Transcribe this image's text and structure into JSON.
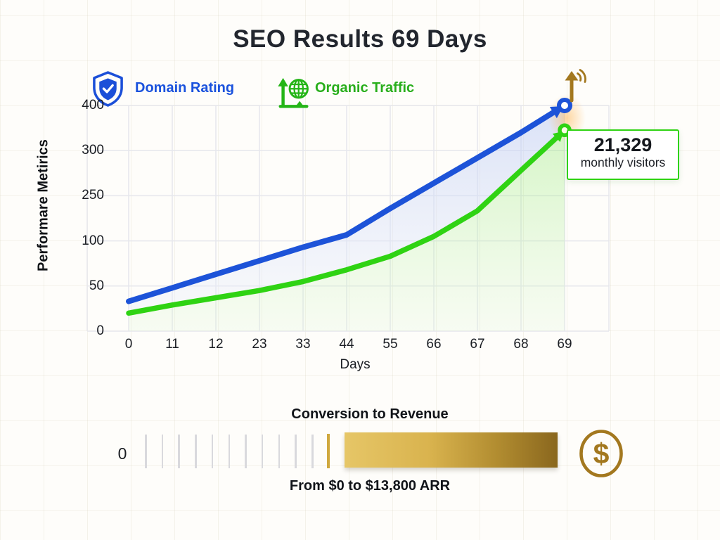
{
  "title": "SEO Results 69 Days",
  "legend": {
    "domain_rating": {
      "label": "Domain Rating",
      "color": "#1a52dd",
      "icon": "shield-check-icon"
    },
    "organic_traffic": {
      "label": "Organic Traffic",
      "color": "#28ae1b",
      "icon": "globe-growth-icon"
    }
  },
  "chart_data": {
    "type": "line",
    "title": "SEO Results 69 Days",
    "xlabel": "Days",
    "ylabel": "Performare Metirics",
    "categories": [
      "0",
      "11",
      "12",
      "23",
      "33",
      "44",
      "55",
      "66",
      "67",
      "68",
      "69"
    ],
    "y_ticks": [
      "0",
      "50",
      "100",
      "250",
      "300",
      "400"
    ],
    "grid": true,
    "legend_position": "top",
    "series": [
      {
        "name": "Domain Rating",
        "color": "#1d53d8",
        "values": [
          33,
          48,
          63,
          78,
          93,
          120,
          208,
          264,
          292,
          340,
          400
        ]
      },
      {
        "name": "Organic Traffic",
        "color": "#2fd313",
        "values": [
          20,
          29,
          37,
          45,
          55,
          68,
          83,
          115,
          200,
          278,
          345
        ]
      }
    ],
    "annotation": {
      "value": "21,329",
      "label": "monthly visitors"
    },
    "end_marker_icon": "arrow-up-signal-icon"
  },
  "revenue": {
    "title": "Conversion to Revenue",
    "start_label": "0",
    "caption": "From $0 to $13,800 ARR",
    "gray_tick_count": 11,
    "bar_gradient": [
      "#e6c667",
      "#8a671e"
    ],
    "gold_color": "#a3781f",
    "dollar_glyph": "$",
    "icon": "dollar-circle-icon"
  }
}
